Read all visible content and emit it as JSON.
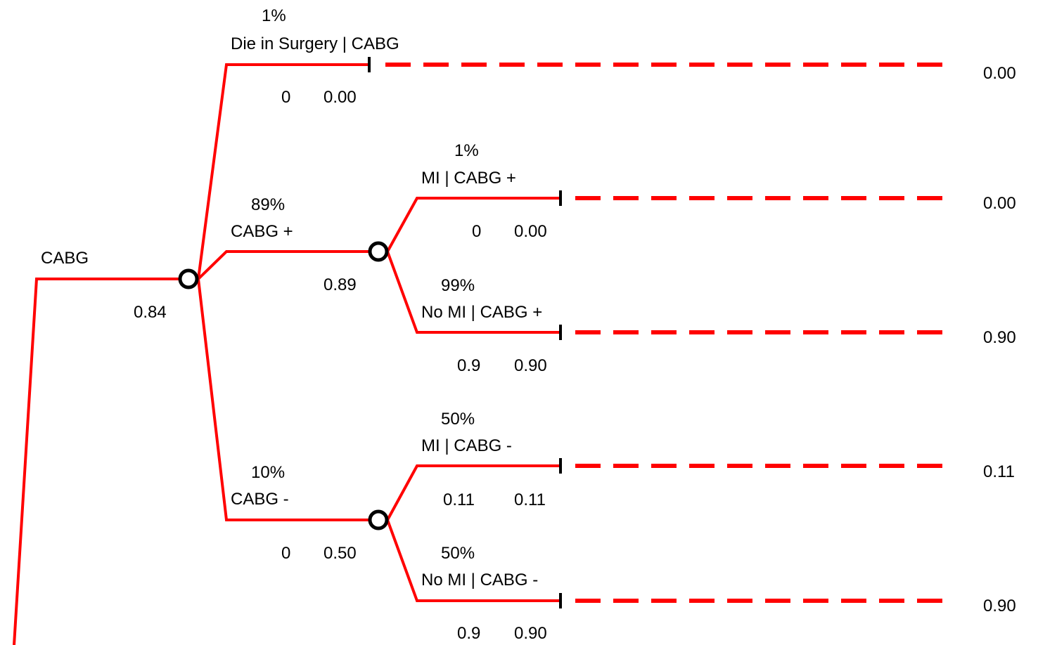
{
  "colors": {
    "branch": "#ff0000",
    "node_outline": "#000000",
    "text": "#000000"
  },
  "root": {
    "label": "CABG",
    "value": "0.84",
    "children": [
      {
        "name": "die-in-surgery",
        "prob": "1%",
        "label": "Die in Surgery | CABG",
        "payoff": "0",
        "value": "0.00",
        "final": "0.00"
      },
      {
        "name": "cabg-plus",
        "prob": "89%",
        "label": "CABG +",
        "value": "0.89",
        "children": [
          {
            "name": "mi-cabg-plus",
            "prob": "1%",
            "label": "MI | CABG +",
            "payoff": "0",
            "value": "0.00",
            "final": "0.00"
          },
          {
            "name": "no-mi-cabg-plus",
            "prob": "99%",
            "label": "No MI | CABG +",
            "payoff": "0.9",
            "value": "0.90",
            "final": "0.90"
          }
        ]
      },
      {
        "name": "cabg-minus",
        "prob": "10%",
        "label": "CABG -",
        "payoff": "0",
        "value": "0.50",
        "children": [
          {
            "name": "mi-cabg-minus",
            "prob": "50%",
            "label": "MI | CABG -",
            "payoff": "0.11",
            "value": "0.11",
            "final": "0.11"
          },
          {
            "name": "no-mi-cabg-minus",
            "prob": "50%",
            "label": "No MI | CABG -",
            "payoff": "0.9",
            "value": "0.90",
            "final": "0.90"
          }
        ]
      }
    ]
  }
}
